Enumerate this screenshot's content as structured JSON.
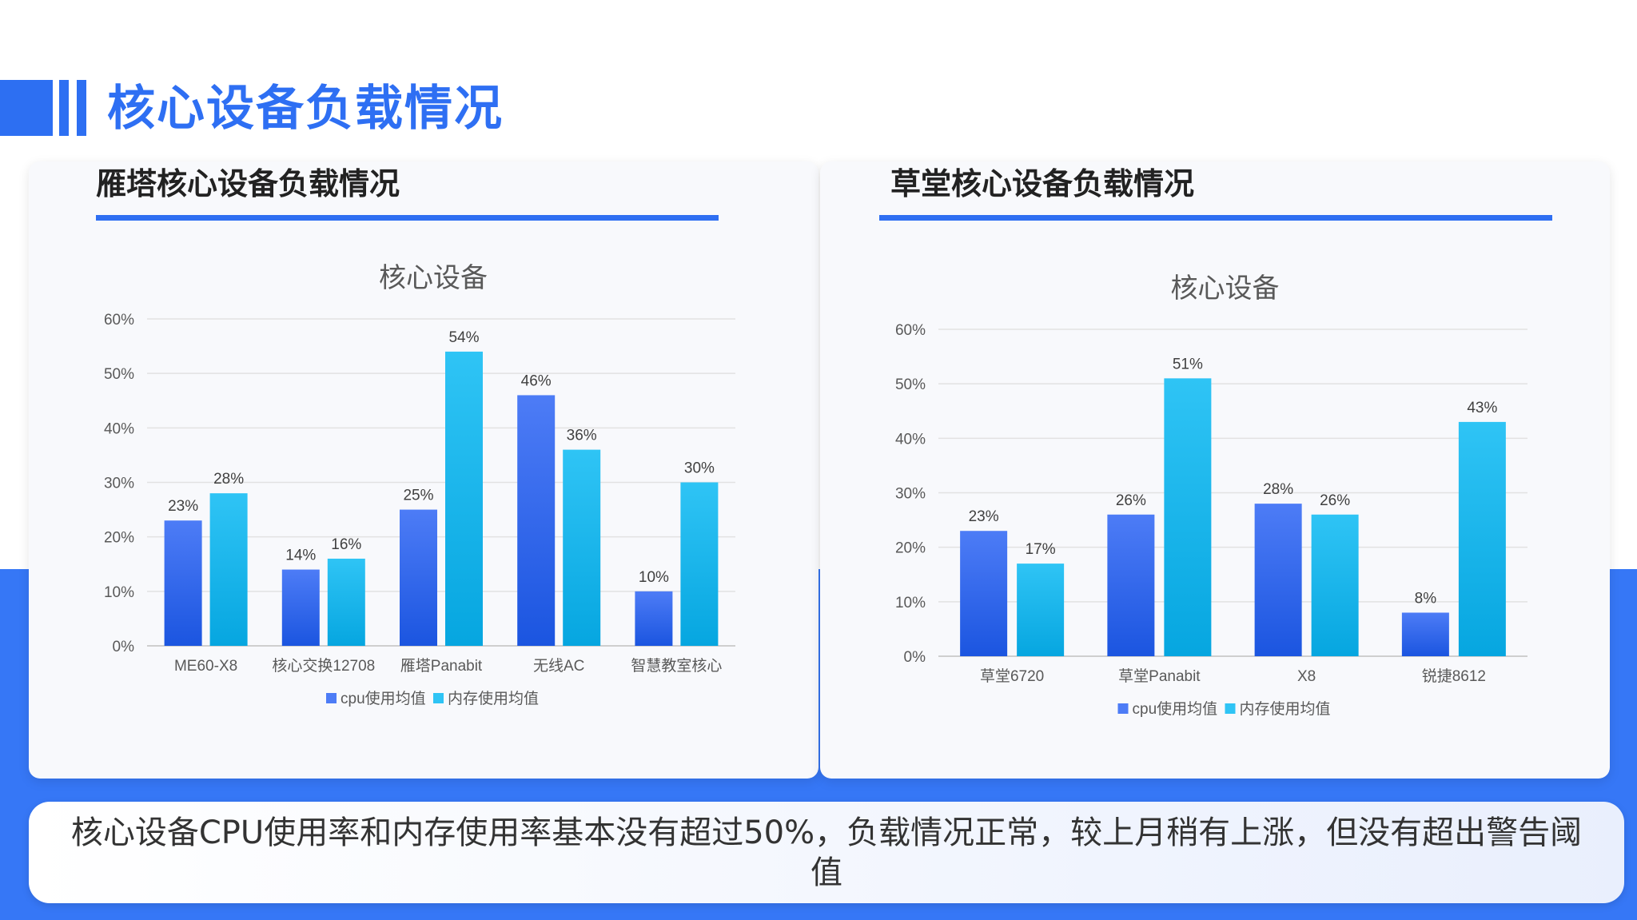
{
  "page": {
    "title": "核心设备负载情况",
    "summary": "核心设备CPU使用率和内存使用率基本没有超过50%，负载情况正常，较上月稍有上涨，但没有超出警告阈值"
  },
  "colors": {
    "accent": "#2e6ff3",
    "cpu_top": "#4d7cf6",
    "cpu_bottom": "#1b55e0",
    "mem_top": "#2fc4f5",
    "mem_bottom": "#06a6e0"
  },
  "cards": [
    {
      "title": "雁塔核心设备负载情况"
    },
    {
      "title": "草堂核心设备负载情况"
    }
  ],
  "chart_data": [
    {
      "type": "bar",
      "title": "核心设备",
      "categories": [
        "ME60-X8",
        "核心交换12708",
        "雁塔Panabit",
        "无线AC",
        "智慧教室核心"
      ],
      "series": [
        {
          "name": "cpu使用均值",
          "values": [
            23,
            14,
            25,
            46,
            10
          ]
        },
        {
          "name": "内存使用均值",
          "values": [
            28,
            16,
            54,
            36,
            30
          ]
        }
      ],
      "y_ticks": [
        "0%",
        "10%",
        "20%",
        "30%",
        "40%",
        "50%",
        "60%"
      ],
      "ylim": [
        0,
        60
      ],
      "value_suffix": "%",
      "grid": true,
      "legend": "bottom"
    },
    {
      "type": "bar",
      "title": "核心设备",
      "categories": [
        "草堂6720",
        "草堂Panabit",
        "X8",
        "锐捷8612"
      ],
      "series": [
        {
          "name": "cpu使用均值",
          "values": [
            23,
            26,
            28,
            8
          ]
        },
        {
          "name": "内存使用均值",
          "values": [
            17,
            51,
            26,
            43
          ]
        }
      ],
      "y_ticks": [
        "0%",
        "10%",
        "20%",
        "30%",
        "40%",
        "50%",
        "60%"
      ],
      "ylim": [
        0,
        60
      ],
      "value_suffix": "%",
      "grid": true,
      "legend": "bottom"
    }
  ]
}
